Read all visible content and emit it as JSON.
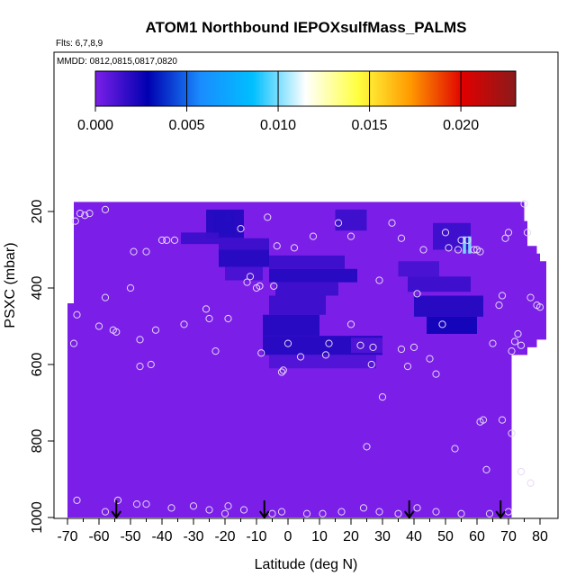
{
  "chart_data": {
    "type": "heatmap",
    "title": "ATOM1 Northbound IEPOXsulfMass_PALMS",
    "flights_label": "Flts: 6,7,8,9",
    "dates_label": "MMDD: 0812,0815,0817,0820",
    "xlabel": "Latitude (deg N)",
    "ylabel": "PSXC (mbar)",
    "xlim": [
      -70,
      82
    ],
    "ylim": [
      1000,
      130
    ],
    "y_reversed": true,
    "x_ticks": [
      -70,
      -60,
      -50,
      -40,
      -30,
      -20,
      -10,
      0,
      10,
      20,
      30,
      40,
      50,
      60,
      70,
      80
    ],
    "x_tick_labels": [
      "-70",
      "-60",
      "-50",
      "-40",
      "-30",
      "-20",
      "-10",
      "0",
      "10",
      "20",
      "30",
      "40",
      "50",
      "60",
      "70",
      "80"
    ],
    "y_ticks": [
      200,
      400,
      600,
      800,
      1000
    ],
    "y_tick_labels": [
      "200",
      "400",
      "600",
      "800",
      "1000"
    ],
    "colorbar": {
      "range": [
        0,
        0.023
      ],
      "ticks": [
        0,
        0.005,
        0.01,
        0.015,
        0.02
      ],
      "tick_labels": [
        "0.000",
        "0.005",
        "0.010",
        "0.015",
        "0.020"
      ],
      "colors": [
        "#7b1fe8",
        "#0000b0",
        "#1a8cff",
        "#00bfff",
        "#ffffff",
        "#ffff40",
        "#ff9900",
        "#e00000",
        "#8b1a1a"
      ]
    },
    "background_value": 0.0,
    "cells": [
      {
        "lat": [
          -20,
          -18
        ],
        "p": [
          200,
          230
        ],
        "value": 0.006
      },
      {
        "lat": [
          -24,
          -17
        ],
        "p": [
          200,
          260
        ],
        "value": 0.004
      },
      {
        "lat": [
          -26,
          -14
        ],
        "p": [
          195,
          270
        ],
        "value": 0.002
      },
      {
        "lat": [
          -34,
          -22
        ],
        "p": [
          255,
          285
        ],
        "value": 0.0015
      },
      {
        "lat": [
          -22,
          -6
        ],
        "p": [
          270,
          300
        ],
        "value": 0.0015
      },
      {
        "lat": [
          -22,
          -6
        ],
        "p": [
          300,
          345
        ],
        "value": 0.002
      },
      {
        "lat": [
          -20,
          -8
        ],
        "p": [
          345,
          380
        ],
        "value": 0.0012
      },
      {
        "lat": [
          -6,
          18
        ],
        "p": [
          315,
          350
        ],
        "value": 0.0015
      },
      {
        "lat": [
          -6,
          22
        ],
        "p": [
          350,
          385
        ],
        "value": 0.002
      },
      {
        "lat": [
          -4,
          16
        ],
        "p": [
          385,
          420
        ],
        "value": 0.0015
      },
      {
        "lat": [
          -6,
          12
        ],
        "p": [
          420,
          470
        ],
        "value": 0.0015
      },
      {
        "lat": [
          -8,
          10
        ],
        "p": [
          470,
          525
        ],
        "value": 0.002
      },
      {
        "lat": [
          -8,
          30
        ],
        "p": [
          525,
          575
        ],
        "value": 0.002
      },
      {
        "lat": [
          -6,
          28
        ],
        "p": [
          575,
          610
        ],
        "value": 0.001
      },
      {
        "lat": [
          15,
          25
        ],
        "p": [
          195,
          250
        ],
        "value": 0.0015
      },
      {
        "lat": [
          35,
          48
        ],
        "p": [
          330,
          370
        ],
        "value": 0.0012
      },
      {
        "lat": [
          38,
          58
        ],
        "p": [
          370,
          410
        ],
        "value": 0.0015
      },
      {
        "lat": [
          40,
          62
        ],
        "p": [
          420,
          475
        ],
        "value": 0.002
      },
      {
        "lat": [
          44,
          60
        ],
        "p": [
          475,
          520
        ],
        "value": 0.0025
      },
      {
        "lat": [
          46,
          58
        ],
        "p": [
          230,
          300
        ],
        "value": 0.0015
      },
      {
        "lat": [
          55.5,
          56.5
        ],
        "p": [
          265,
          310
        ],
        "value": 0.01
      },
      {
        "lat": [
          57.2,
          58.2
        ],
        "p": [
          265,
          310
        ],
        "value": 0.01
      },
      {
        "lat": [
          20,
          30
        ],
        "p": [
          530,
          570
        ],
        "value": 0.001
      }
    ],
    "flight_points": [
      [
        -67.5,
        225
      ],
      [
        -66,
        205
      ],
      [
        -64.5,
        210
      ],
      [
        -63,
        205
      ],
      [
        -58,
        195
      ],
      [
        -58,
        425
      ],
      [
        -60,
        500
      ],
      [
        -55.5,
        510
      ],
      [
        -54.5,
        515
      ],
      [
        -50,
        400
      ],
      [
        -49,
        305
      ],
      [
        -47,
        605
      ],
      [
        -47,
        535
      ],
      [
        -45,
        305
      ],
      [
        -43.5,
        600
      ],
      [
        -42,
        510
      ],
      [
        -40,
        275
      ],
      [
        -38.5,
        275
      ],
      [
        -36,
        275
      ],
      [
        -33,
        495
      ],
      [
        -26,
        455
      ],
      [
        -25,
        480
      ],
      [
        -23,
        565
      ],
      [
        -19,
        480
      ],
      [
        -15,
        245
      ],
      [
        -13,
        385
      ],
      [
        -12,
        370
      ],
      [
        -10,
        400
      ],
      [
        -9,
        395
      ],
      [
        -8.5,
        570
      ],
      [
        -6.5,
        215
      ],
      [
        -4.5,
        395
      ],
      [
        -3.5,
        290
      ],
      [
        -2,
        620
      ],
      [
        0,
        545
      ],
      [
        2,
        295
      ],
      [
        4,
        580
      ],
      [
        8,
        265
      ],
      [
        12,
        575
      ],
      [
        13,
        545
      ],
      [
        16,
        230
      ],
      [
        20,
        265
      ],
      [
        20,
        495
      ],
      [
        23,
        550
      ],
      [
        26.5,
        600
      ],
      [
        27,
        555
      ],
      [
        29,
        380
      ],
      [
        33,
        230
      ],
      [
        36,
        270
      ],
      [
        36,
        560
      ],
      [
        38,
        605
      ],
      [
        40,
        555
      ],
      [
        41,
        415
      ],
      [
        43,
        300
      ],
      [
        45,
        585
      ],
      [
        47,
        625
      ],
      [
        49,
        495
      ],
      [
        50,
        255
      ],
      [
        51,
        295
      ],
      [
        54,
        300
      ],
      [
        55,
        275
      ],
      [
        57,
        275
      ],
      [
        59,
        300
      ],
      [
        60,
        300
      ],
      [
        61,
        305
      ],
      [
        65,
        545
      ],
      [
        67,
        445
      ],
      [
        68,
        420
      ],
      [
        69,
        270
      ],
      [
        70,
        255
      ],
      [
        71,
        565
      ],
      [
        72,
        540
      ],
      [
        73,
        520
      ],
      [
        74,
        550
      ],
      [
        75,
        180
      ],
      [
        76,
        255
      ],
      [
        77,
        425
      ],
      [
        79,
        445
      ],
      [
        80,
        450
      ],
      [
        68,
        745
      ],
      [
        71,
        780
      ],
      [
        74,
        880
      ],
      [
        77,
        910
      ],
      [
        63,
        875
      ],
      [
        61,
        750
      ],
      [
        -67,
        470
      ],
      [
        -68,
        545
      ],
      [
        -67,
        955
      ],
      [
        -58,
        985
      ],
      [
        -54,
        955
      ],
      [
        -48,
        965
      ],
      [
        -45,
        965
      ],
      [
        -37,
        975
      ],
      [
        -30,
        970
      ],
      [
        -25,
        980
      ],
      [
        -19,
        970
      ],
      [
        -20,
        990
      ],
      [
        -14,
        980
      ],
      [
        -5,
        990
      ],
      [
        -2,
        985
      ],
      [
        6,
        990
      ],
      [
        11,
        990
      ],
      [
        17,
        985
      ],
      [
        24,
        975
      ],
      [
        29,
        985
      ],
      [
        35,
        990
      ],
      [
        41,
        975
      ],
      [
        47,
        985
      ],
      [
        55,
        990
      ],
      [
        64,
        990
      ],
      [
        70,
        985
      ],
      [
        25,
        815
      ],
      [
        -1.5,
        615
      ],
      [
        30,
        685
      ],
      [
        53,
        820
      ],
      [
        62,
        745
      ]
    ],
    "arrows_lat": [
      -54.5,
      -7.5,
      38.5,
      67.5
    ]
  }
}
